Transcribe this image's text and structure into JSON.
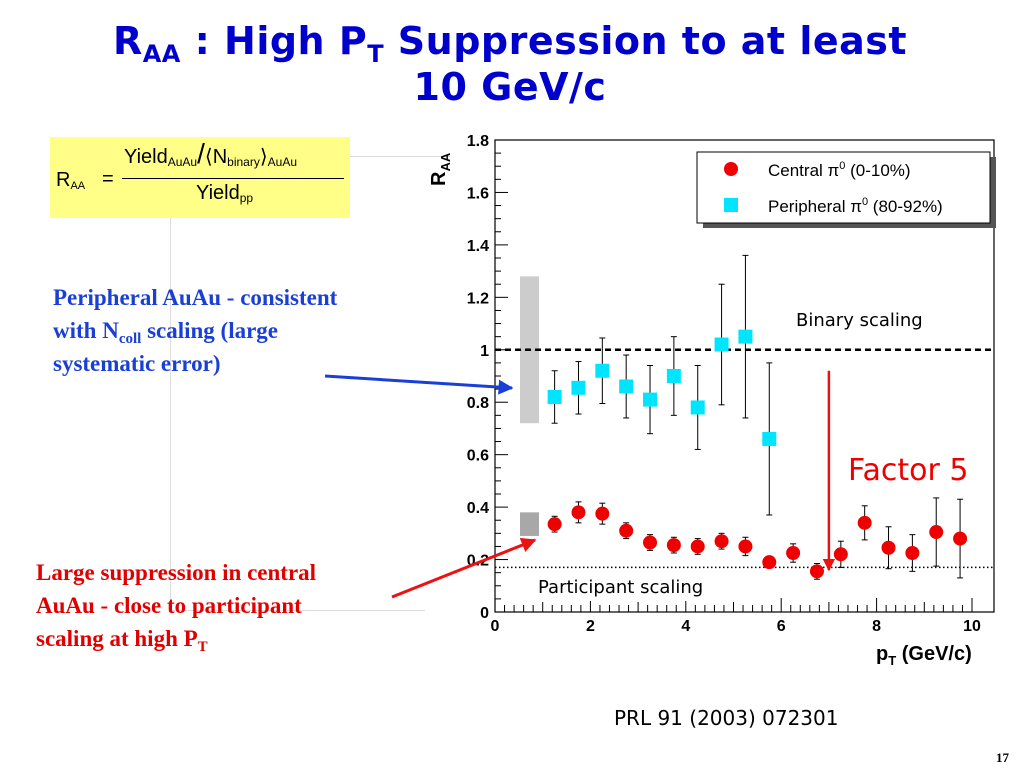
{
  "slide": {
    "title_main": "R",
    "title_sub": "AA",
    "title_rest1": " : High P",
    "title_sub2": "T",
    "title_rest2": " Suppression to at least",
    "title_line2": "10 GeV/c",
    "formula": {
      "lhs": "R",
      "lhs_sub": "AA",
      "equals": "=",
      "num_yield": "Yield",
      "num_yield_sub": "AuAu",
      "num_slash": "/",
      "num_bracket_open": "⟨",
      "num_n": "N",
      "num_n_sub": "binary",
      "num_bracket_close": "⟩",
      "num_bracket_sub": "AuAu",
      "den_yield": "Yield",
      "den_yield_sub": "pp"
    },
    "annotation_peripheral": {
      "line1": "Peripheral AuAu - consistent",
      "line2_pre": "with N",
      "line2_sub": "coll",
      "line2_post": " scaling (large",
      "line3": "systematic error)"
    },
    "annotation_central": {
      "line1": "Large suppression in central",
      "line2": "AuAu - close to participant",
      "line3_pre": "scaling at high P",
      "line3_sub": "T"
    },
    "reference": "PRL 91 (2003) 072301",
    "page_number": "17",
    "colors": {
      "title": "#0000cc",
      "formula_bg": "#ffff88",
      "annot_blue": "#1a3fd6",
      "annot_red": "#e00000",
      "central": "#ee0000",
      "peripheral": "#00e5ff"
    }
  },
  "chart_data": {
    "type": "scatter",
    "xlabel": "p",
    "xlabel_sub": "T",
    "xlabel_unit": " (GeV/c)",
    "ylabel": "R",
    "ylabel_sub": "AA",
    "xlim": [
      0,
      10
    ],
    "ylim": [
      0,
      1.8
    ],
    "xticks": [
      "0",
      "2",
      "4",
      "6",
      "8",
      "10"
    ],
    "yticks": [
      "0",
      "0.2",
      "0.4",
      "0.6",
      "0.8",
      "1",
      "1.2",
      "1.4",
      "1.6",
      "1.8"
    ],
    "legend": {
      "position": "top-right",
      "central_label": "Central π",
      "central_sup": "0",
      "central_range": " (0-10%)",
      "peripheral_label": "Peripheral π",
      "peripheral_sup": "0",
      "peripheral_range": " (80-92%)"
    },
    "series": [
      {
        "name": "Central π0 (0-10%)",
        "marker": "circle",
        "color": "#ee0000",
        "x": [
          1.25,
          1.75,
          2.25,
          2.75,
          3.25,
          3.75,
          4.25,
          4.75,
          5.25,
          5.75,
          6.25,
          6.75,
          7.25,
          7.75,
          8.25,
          8.75,
          9.25,
          9.75
        ],
        "y": [
          0.335,
          0.38,
          0.375,
          0.31,
          0.265,
          0.255,
          0.25,
          0.27,
          0.25,
          0.19,
          0.225,
          0.155,
          0.22,
          0.34,
          0.245,
          0.225,
          0.305,
          0.28
        ],
        "err": [
          0.03,
          0.04,
          0.04,
          0.03,
          0.03,
          0.03,
          0.03,
          0.03,
          0.035,
          0.02,
          0.035,
          0.03,
          0.05,
          0.065,
          0.08,
          0.07,
          0.13,
          0.15
        ]
      },
      {
        "name": "Peripheral π0 (80-92%)",
        "marker": "square",
        "color": "#00e5ff",
        "x": [
          1.25,
          1.75,
          2.25,
          2.75,
          3.25,
          3.75,
          4.25,
          4.75,
          5.25,
          5.75
        ],
        "y": [
          0.82,
          0.855,
          0.92,
          0.86,
          0.81,
          0.9,
          0.78,
          1.02,
          1.05,
          0.66
        ],
        "err": [
          0.1,
          0.1,
          0.125,
          0.12,
          0.13,
          0.15,
          0.16,
          0.23,
          0.31,
          0.29
        ]
      }
    ],
    "systematic_bands": [
      {
        "name": "peripheral normalization",
        "y_low": 0.72,
        "y_high": 1.28,
        "color": "#cccccc"
      },
      {
        "name": "central normalization",
        "y_low": 0.29,
        "y_high": 0.38,
        "color": "#a8a8a8"
      }
    ],
    "reference_lines": [
      {
        "label": "Binary scaling",
        "y": 1.0,
        "style": "dashed"
      },
      {
        "label": "Participant scaling",
        "y": 0.17,
        "style": "dotted"
      }
    ],
    "annotations": [
      {
        "text": "Factor 5",
        "color": "#ee0000",
        "arrow_x": 7.0,
        "arrow_from": 0.92,
        "arrow_to": 0.16
      }
    ]
  }
}
